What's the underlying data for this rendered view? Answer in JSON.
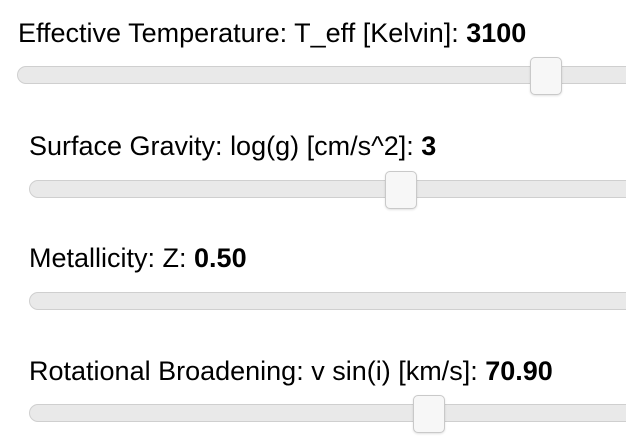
{
  "sliders": [
    {
      "label": "Effective Temperature: T_eff [Kelvin]: ",
      "value": "3100",
      "position": 0.84
    },
    {
      "label": "Surface Gravity: log(g) [cm/s^2]: ",
      "value": "3",
      "position": 0.6
    },
    {
      "label": "Metallicity: Z: ",
      "value": "0.50",
      "position": null
    },
    {
      "label": "Rotational Broadening: v sin(i) [km/s]: ",
      "value": "70.90",
      "position": 0.645
    }
  ]
}
